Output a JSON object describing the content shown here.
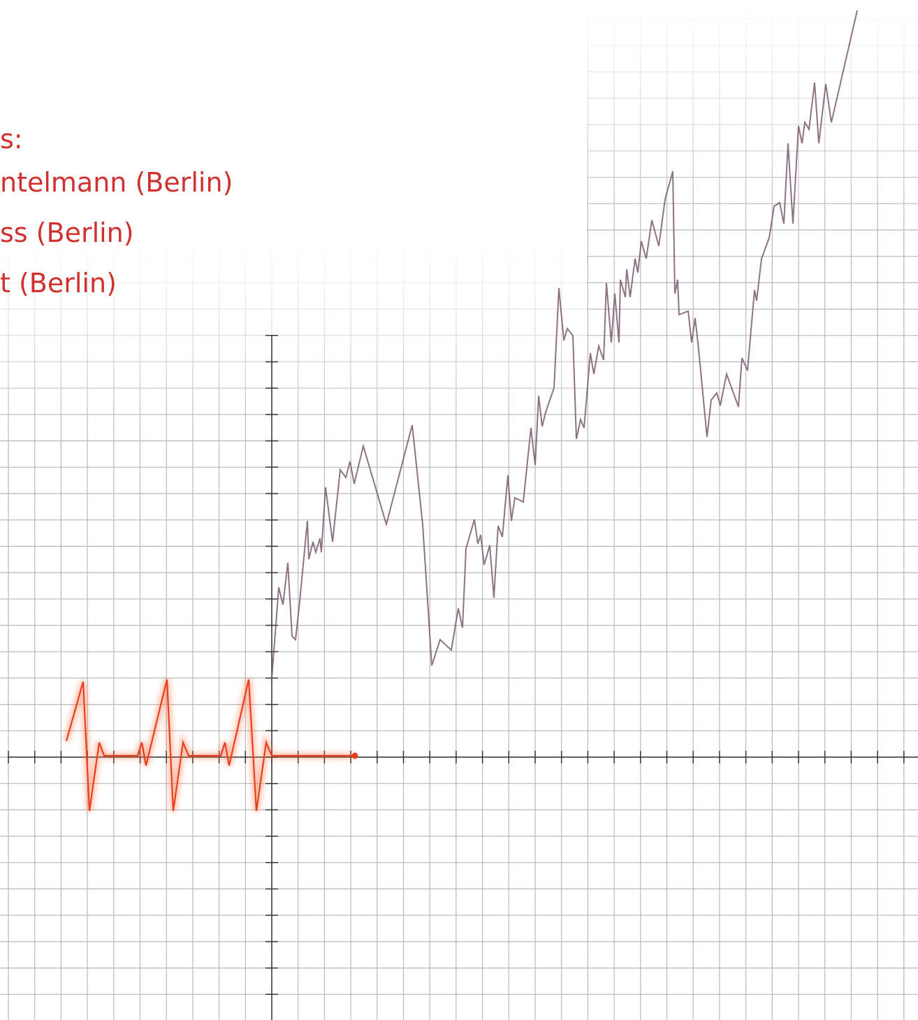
{
  "legend": {
    "lines": [
      "s:",
      "ntelmann (Berlin)",
      "ss (Berlin)",
      "t (Berlin)"
    ]
  }
}
